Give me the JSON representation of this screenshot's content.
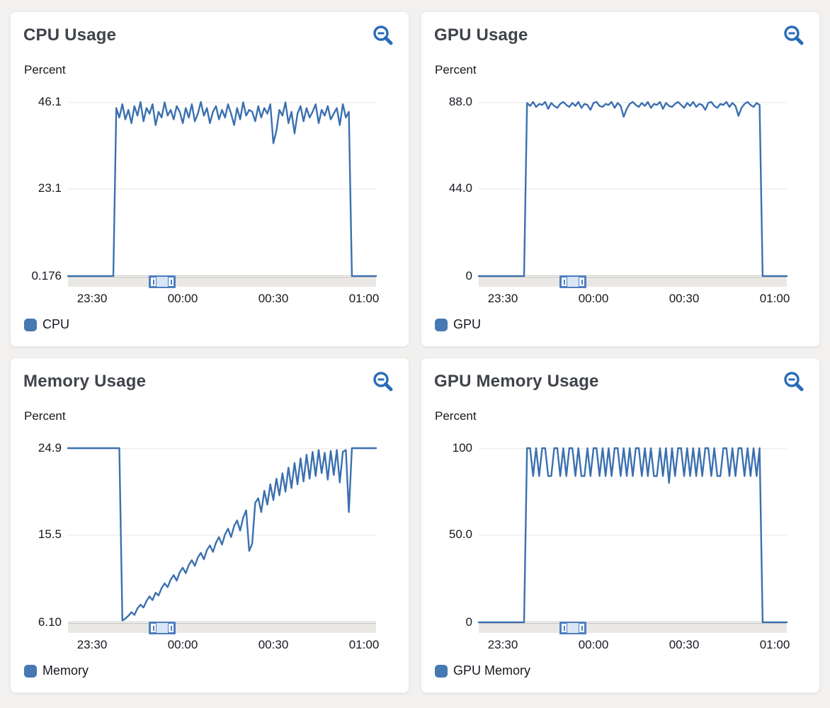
{
  "colors": {
    "page_bg": "#f2f1ef",
    "card_bg": "#ffffff",
    "line": "#3b70b0",
    "legend_swatch": "#4678b2",
    "icon_blue": "#2a6cb7",
    "grid": "#e7e7e7",
    "axis_line": "#c6c5c3",
    "track": "#e9e8e5",
    "handle_border": "#4d7ec0",
    "handle_fill": "#d9e6f5",
    "title_text": "#40434b",
    "text": "#16191f"
  },
  "icons": {
    "panel_action": "zoom-out-magnifier"
  },
  "panels": [
    {
      "title": "CPU Usage",
      "unit": "Percent",
      "legend": "CPU",
      "y_ticks": [
        "46.1",
        "23.1",
        "0.176"
      ],
      "x_ticks": [
        "23:30",
        "00:00",
        "00:30",
        "01:00"
      ]
    },
    {
      "title": "GPU Usage",
      "unit": "Percent",
      "legend": "GPU",
      "y_ticks": [
        "88.0",
        "44.0",
        "0"
      ],
      "x_ticks": [
        "23:30",
        "00:00",
        "00:30",
        "01:00"
      ]
    },
    {
      "title": "Memory Usage",
      "unit": "Percent",
      "legend": "Memory",
      "y_ticks": [
        "24.9",
        "15.5",
        "6.10"
      ],
      "x_ticks": [
        "23:30",
        "00:00",
        "00:30",
        "01:00"
      ]
    },
    {
      "title": "GPU Memory Usage",
      "unit": "Percent",
      "legend": "GPU Memory",
      "y_ticks": [
        "100",
        "50.0",
        "0"
      ],
      "x_ticks": [
        "23:30",
        "00:00",
        "00:30",
        "01:00"
      ]
    }
  ],
  "chart_data": [
    {
      "type": "line",
      "title": "CPU Usage",
      "ylabel": "Percent",
      "series_name": "CPU",
      "ylim": [
        0.176,
        46.1
      ],
      "y_tick_values": [
        46.1,
        23.1,
        0.176
      ],
      "t_range": [
        0,
        102
      ],
      "sample_interval_minutes": 1,
      "x_start_time": "23:22",
      "x_tick_labels": [
        "23:30",
        "00:00",
        "00:30",
        "01:00"
      ],
      "x_tick_positions_minutes": [
        8,
        38,
        68,
        98
      ],
      "grid": true,
      "legend_position": "bottom-left",
      "values": [
        0.176,
        0.176,
        0.176,
        0.176,
        0.176,
        0.176,
        0.176,
        0.176,
        0.176,
        0.176,
        0.176,
        0.176,
        0.176,
        0.176,
        0.176,
        0.176,
        44.5,
        42.0,
        45.5,
        41.5,
        44.0,
        40.5,
        45.0,
        42.5,
        46.1,
        41.0,
        44.5,
        43.0,
        45.5,
        40.0,
        43.5,
        42.0,
        46.0,
        42.5,
        44.0,
        41.5,
        45.0,
        43.5,
        40.5,
        44.5,
        42.0,
        45.5,
        41.0,
        43.0,
        46.1,
        42.5,
        44.5,
        40.5,
        43.5,
        45.0,
        41.5,
        44.0,
        42.0,
        45.5,
        43.0,
        40.0,
        44.5,
        41.5,
        46.0,
        42.5,
        44.0,
        43.5,
        41.0,
        45.0,
        42.0,
        44.5,
        43.0,
        45.5,
        35.2,
        38.5,
        44.0,
        42.5,
        46.0,
        40.5,
        43.5,
        37.8,
        43.0,
        45.0,
        41.0,
        44.5,
        42.0,
        43.5,
        45.5,
        40.5,
        44.0,
        42.5,
        45.0,
        41.5,
        43.0,
        44.5,
        40.0,
        45.5,
        42.0,
        43.5,
        0.176,
        0.176,
        0.176,
        0.176,
        0.176,
        0.176,
        0.176,
        0.176,
        0.176
      ]
    },
    {
      "type": "line",
      "title": "GPU Usage",
      "ylabel": "Percent",
      "series_name": "GPU",
      "ylim": [
        0,
        88.0
      ],
      "y_tick_values": [
        88.0,
        44.0,
        0
      ],
      "t_range": [
        0,
        102
      ],
      "sample_interval_minutes": 1,
      "x_start_time": "23:22",
      "x_tick_labels": [
        "23:30",
        "00:00",
        "00:30",
        "01:00"
      ],
      "x_tick_positions_minutes": [
        8,
        38,
        68,
        98
      ],
      "grid": true,
      "legend_position": "bottom-left",
      "values": [
        0,
        0,
        0,
        0,
        0,
        0,
        0,
        0,
        0,
        0,
        0,
        0,
        0,
        0,
        0,
        0,
        87.5,
        86.0,
        88.0,
        85.5,
        87.0,
        86.5,
        88.0,
        84.5,
        87.5,
        86.0,
        85.0,
        87.0,
        88.0,
        86.5,
        85.5,
        87.5,
        86.0,
        88.0,
        85.0,
        87.0,
        86.5,
        84.0,
        87.5,
        88.0,
        86.0,
        85.5,
        87.0,
        86.5,
        88.0,
        85.0,
        87.5,
        86.0,
        80.5,
        84.5,
        87.0,
        88.0,
        86.5,
        85.5,
        87.5,
        86.0,
        88.0,
        85.0,
        87.0,
        86.5,
        88.0,
        84.5,
        87.5,
        86.0,
        85.5,
        87.0,
        88.0,
        86.5,
        85.0,
        87.5,
        86.0,
        88.0,
        85.5,
        87.0,
        86.5,
        84.0,
        87.5,
        88.0,
        86.0,
        85.0,
        87.0,
        86.5,
        88.0,
        85.5,
        87.5,
        86.0,
        81.0,
        85.0,
        87.0,
        88.0,
        86.5,
        85.5,
        87.5,
        86.5,
        0,
        0,
        0,
        0,
        0,
        0,
        0,
        0,
        0
      ]
    },
    {
      "type": "line",
      "title": "Memory Usage",
      "ylabel": "Percent",
      "series_name": "Memory",
      "ylim": [
        6.1,
        24.9
      ],
      "y_tick_values": [
        24.9,
        15.5,
        6.1
      ],
      "t_range": [
        0,
        102
      ],
      "sample_interval_minutes": 1,
      "x_start_time": "23:22",
      "x_tick_labels": [
        "23:30",
        "00:00",
        "00:30",
        "01:00"
      ],
      "x_tick_positions_minutes": [
        8,
        38,
        68,
        98
      ],
      "grid": true,
      "legend_position": "bottom-left",
      "values": [
        24.9,
        24.9,
        24.9,
        24.9,
        24.9,
        24.9,
        24.9,
        24.9,
        24.9,
        24.9,
        24.9,
        24.9,
        24.9,
        24.9,
        24.9,
        24.9,
        24.9,
        24.9,
        6.3,
        6.5,
        6.8,
        7.2,
        6.9,
        7.6,
        8.0,
        7.7,
        8.4,
        8.9,
        8.5,
        9.3,
        9.0,
        9.8,
        10.3,
        9.9,
        10.7,
        11.2,
        10.6,
        11.5,
        12.0,
        11.4,
        12.3,
        12.8,
        12.2,
        13.1,
        13.6,
        12.9,
        13.9,
        14.4,
        13.7,
        14.7,
        15.3,
        14.5,
        15.6,
        16.2,
        15.3,
        16.5,
        17.1,
        16.0,
        17.4,
        18.2,
        13.8,
        14.6,
        19.0,
        19.5,
        18.0,
        20.3,
        18.8,
        21.0,
        19.3,
        21.6,
        19.8,
        22.2,
        20.2,
        22.8,
        20.6,
        23.3,
        21.0,
        23.8,
        21.3,
        24.2,
        21.6,
        24.5,
        21.9,
        24.7,
        22.2,
        24.4,
        21.5,
        24.6,
        22.0,
        24.7,
        21.2,
        24.5,
        24.7,
        18.0,
        24.9,
        24.9,
        24.9,
        24.9,
        24.9,
        24.9,
        24.9,
        24.9,
        24.9
      ]
    },
    {
      "type": "line",
      "title": "GPU Memory Usage",
      "ylabel": "Percent",
      "series_name": "GPU Memory",
      "ylim": [
        0,
        100
      ],
      "y_tick_values": [
        100,
        50.0,
        0
      ],
      "t_range": [
        0,
        102
      ],
      "sample_interval_minutes": 1,
      "x_start_time": "23:22",
      "x_tick_labels": [
        "23:30",
        "00:00",
        "00:30",
        "01:00"
      ],
      "x_tick_positions_minutes": [
        8,
        38,
        68,
        98
      ],
      "grid": true,
      "legend_position": "bottom-left",
      "values": [
        0,
        0,
        0,
        0,
        0,
        0,
        0,
        0,
        0,
        0,
        0,
        0,
        0,
        0,
        0,
        0,
        100,
        100,
        84,
        100,
        84,
        100,
        100,
        84,
        84,
        100,
        100,
        84,
        100,
        84,
        100,
        100,
        84,
        100,
        84,
        84,
        100,
        84,
        100,
        100,
        84,
        100,
        84,
        100,
        84,
        100,
        100,
        84,
        100,
        84,
        100,
        84,
        100,
        100,
        84,
        100,
        84,
        100,
        84,
        84,
        100,
        84,
        100,
        80,
        100,
        84,
        100,
        100,
        84,
        100,
        84,
        100,
        84,
        100,
        84,
        100,
        100,
        84,
        100,
        84,
        84,
        100,
        100,
        84,
        100,
        84,
        100,
        100,
        84,
        100,
        84,
        100,
        84,
        100,
        0,
        0,
        0,
        0,
        0,
        0,
        0,
        0,
        0
      ]
    }
  ]
}
